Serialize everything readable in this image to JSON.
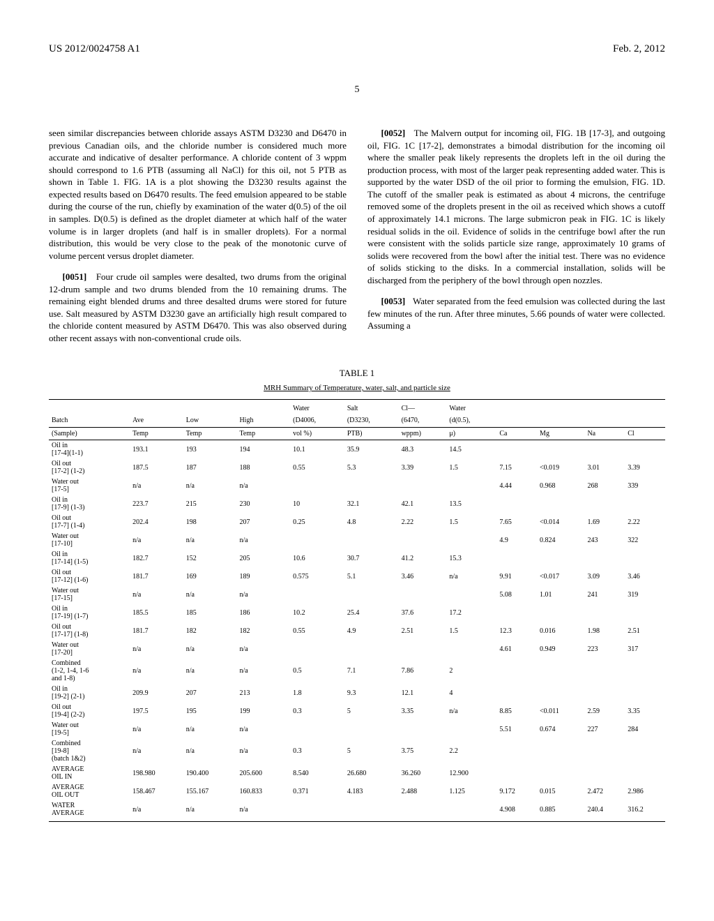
{
  "header": {
    "pub_number": "US 2012/0024758 A1",
    "pub_date": "Feb. 2, 2012"
  },
  "page_number": "5",
  "left_column": {
    "p1": "seen similar discrepancies between chloride assays ASTM D3230 and D6470 in previous Canadian oils, and the chloride number is considered much more accurate and indicative of desalter performance. A chloride content of 3 wppm should correspond to 1.6 PTB (assuming all NaCl) for this oil, not 5 PTB as shown in Table 1. FIG. 1A is a plot showing the D3230 results against the expected results based on D6470 results. The feed emulsion appeared to be stable during the course of the run, chiefly by examination of the water d(0.5) of the oil in samples. D(0.5) is defined as the droplet diameter at which half of the water volume is in larger droplets (and half is in smaller droplets). For a normal distribution, this would be very close to the peak of the monotonic curve of volume percent versus droplet diameter.",
    "p2_num": "[0051]",
    "p2": "Four crude oil samples were desalted, two drums from the original 12-drum sample and two drums blended from the 10 remaining drums. The remaining eight blended drums and three desalted drums were stored for future use. Salt measured by ASTM D3230 gave an artificially high result compared to the chloride content measured by ASTM D6470. This was also observed during other recent assays with non-conventional crude oils."
  },
  "right_column": {
    "p1_num": "[0052]",
    "p1": "The Malvern output for incoming oil, FIG. 1B [17-3], and outgoing oil, FIG. 1C [17-2], demonstrates a bimodal distribution for the incoming oil where the smaller peak likely represents the droplets left in the oil during the production process, with most of the larger peak representing added water. This is supported by the water DSD of the oil prior to forming the emulsion, FIG. 1D. The cutoff of the smaller peak is estimated as about 4 microns, the centrifuge removed some of the droplets present in the oil as received which shows a cutoff of approximately 14.1 microns. The large submicron peak in FIG. 1C is likely residual solids in the oil. Evidence of solids in the centrifuge bowl after the run were consistent with the solids particle size range, approximately 10 grams of solids were recovered from the bowl after the initial test. There was no evidence of solids sticking to the disks. In a commercial installation, solids will be discharged from the periphery of the bowl through open nozzles.",
    "p2_num": "[0053]",
    "p2": "Water separated from the feed emulsion was collected during the last few minutes of the run. After three minutes, 5.66 pounds of water were collected. Assuming a"
  },
  "table": {
    "caption": "TABLE 1",
    "subcaption": "MRH Summary of Temperature, water, salt, and particle size",
    "columns": [
      "Batch (Sample)",
      "Ave Temp",
      "Low Temp",
      "High Temp",
      "Water (D4006, vol %)",
      "Salt (D3230, PTB)",
      "Cl— (6470, wppm)",
      "Water (d(0.5), μ)",
      "Ca",
      "Mg",
      "Na",
      "Cl"
    ],
    "rows": [
      [
        "Oil in\n[17-4](1-1)",
        "193.1",
        "193",
        "194",
        "10.1",
        "35.9",
        "48.3",
        "14.5",
        "",
        "",
        "",
        ""
      ],
      [
        "Oil out\n[17-2] (1-2)",
        "187.5",
        "187",
        "188",
        "0.55",
        "5.3",
        "3.39",
        "1.5",
        "7.15",
        "<0.019",
        "3.01",
        "3.39"
      ],
      [
        "Water out\n[17-5]",
        "n/a",
        "n/a",
        "n/a",
        "",
        "",
        "",
        "",
        "4.44",
        "0.968",
        "268",
        "339"
      ],
      [
        "Oil in\n[17-9] (1-3)",
        "223.7",
        "215",
        "230",
        "10",
        "32.1",
        "42.1",
        "13.5",
        "",
        "",
        "",
        ""
      ],
      [
        "Oil out\n[17-7] (1-4)",
        "202.4",
        "198",
        "207",
        "0.25",
        "4.8",
        "2.22",
        "1.5",
        "7.65",
        "<0.014",
        "1.69",
        "2.22"
      ],
      [
        "Water out\n[17-10]",
        "n/a",
        "n/a",
        "n/a",
        "",
        "",
        "",
        "",
        "4.9",
        "0.824",
        "243",
        "322"
      ],
      [
        "Oil in\n[17-14] (1-5)",
        "182.7",
        "152",
        "205",
        "10.6",
        "30.7",
        "41.2",
        "15.3",
        "",
        "",
        "",
        ""
      ],
      [
        "Oil out\n[17-12] (1-6)",
        "181.7",
        "169",
        "189",
        "0.575",
        "5.1",
        "3.46",
        "n/a",
        "9.91",
        "<0.017",
        "3.09",
        "3.46"
      ],
      [
        "Water out\n[17-15]",
        "n/a",
        "n/a",
        "n/a",
        "",
        "",
        "",
        "",
        "5.08",
        "1.01",
        "241",
        "319"
      ],
      [
        "Oil in\n[17-19] (1-7)",
        "185.5",
        "185",
        "186",
        "10.2",
        "25.4",
        "37.6",
        "17.2",
        "",
        "",
        "",
        ""
      ],
      [
        "Oil out\n[17-17] (1-8)",
        "181.7",
        "182",
        "182",
        "0.55",
        "4.9",
        "2.51",
        "1.5",
        "12.3",
        "0.016",
        "1.98",
        "2.51"
      ],
      [
        "Water out\n[17-20]",
        "n/a",
        "n/a",
        "n/a",
        "",
        "",
        "",
        "",
        "4.61",
        "0.949",
        "223",
        "317"
      ],
      [
        "Combined\n(1-2, 1-4, 1-6\nand 1-8)",
        "n/a",
        "n/a",
        "n/a",
        "0.5",
        "7.1",
        "7.86",
        "2",
        "",
        "",
        "",
        ""
      ],
      [
        "Oil in\n[19-2] (2-1)",
        "209.9",
        "207",
        "213",
        "1.8",
        "9.3",
        "12.1",
        "4",
        "",
        "",
        "",
        ""
      ],
      [
        "Oil out\n[19-4] (2-2)",
        "197.5",
        "195",
        "199",
        "0.3",
        "5",
        "3.35",
        "n/a",
        "8.85",
        "<0.011",
        "2.59",
        "3.35"
      ],
      [
        "Water out\n[19-5]",
        "n/a",
        "n/a",
        "n/a",
        "",
        "",
        "",
        "",
        "5.51",
        "0.674",
        "227",
        "284"
      ],
      [
        "Combined\n[19-8]\n(batch 1&2)",
        "n/a",
        "n/a",
        "n/a",
        "0.3",
        "5",
        "3.75",
        "2.2",
        "",
        "",
        "",
        ""
      ],
      [
        "AVERAGE\nOIL IN",
        "198.980",
        "190.400",
        "205.600",
        "8.540",
        "26.680",
        "36.260",
        "12.900",
        "",
        "",
        "",
        ""
      ],
      [
        "AVERAGE\nOIL OUT",
        "158.467",
        "155.167",
        "160.833",
        "0.371",
        "4.183",
        "2.488",
        "1.125",
        "9.172",
        "0.015",
        "2.472",
        "2.986"
      ],
      [
        "WATER\nAVERAGE",
        "n/a",
        "n/a",
        "n/a",
        "",
        "",
        "",
        "",
        "4.908",
        "0.885",
        "240.4",
        "316.2"
      ]
    ]
  }
}
